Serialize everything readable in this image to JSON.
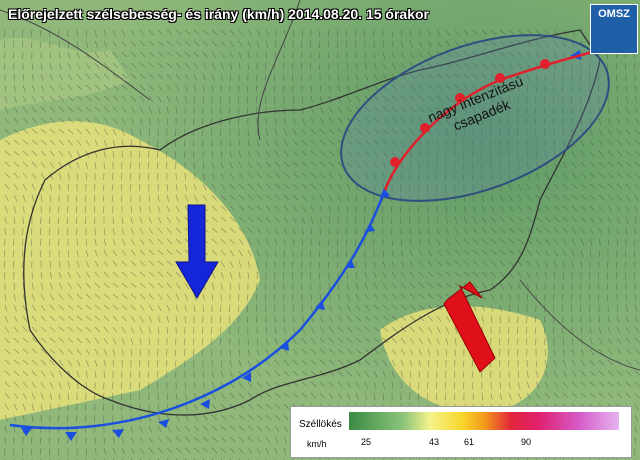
{
  "header": {
    "title": "Előrejelzett szélsebesség- és irány (km/h) 2014.08.20. 15 órakor",
    "logo": "OMSZ"
  },
  "annotation": "nagy intenzitású csapadék",
  "legend": {
    "title": "Széllökés",
    "unit": "km/h",
    "ticks": [
      25,
      43,
      61,
      90
    ]
  }
}
